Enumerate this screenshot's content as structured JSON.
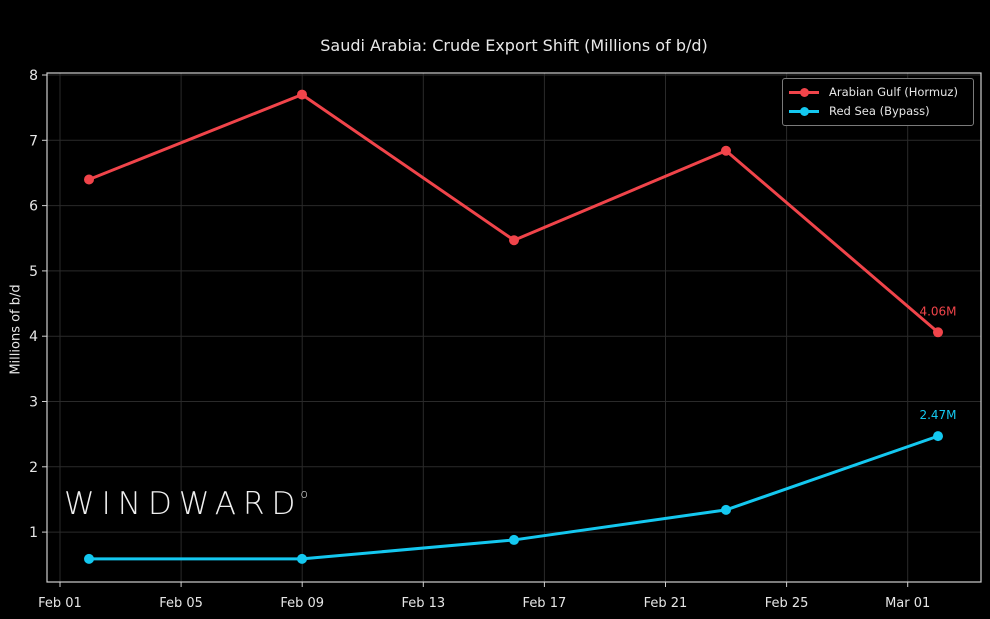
{
  "chart_data": {
    "type": "line",
    "title": "Saudi Arabia: Crude Export Shift (Millions of b/d)",
    "xlabel": "",
    "ylabel": "Millions of b/d",
    "x": [
      "Feb 02",
      "Feb 09",
      "Feb 16",
      "Feb 23",
      "Mar 02"
    ],
    "x_ticks": [
      "Feb 01",
      "Feb 05",
      "Feb 09",
      "Feb 13",
      "Feb 17",
      "Feb 21",
      "Feb 25",
      "Mar 01"
    ],
    "y_ticks": [
      1,
      2,
      3,
      4,
      5,
      6,
      7,
      8
    ],
    "ylim": [
      0.3,
      8.05
    ],
    "grid": true,
    "legend_position": "upper right",
    "series": [
      {
        "name": "Arabian Gulf (Hormuz)",
        "color": "#f0444a",
        "values": [
          6.4,
          7.7,
          5.47,
          6.84,
          4.06
        ],
        "end_label": "4.06M"
      },
      {
        "name": "Red Sea (Bypass)",
        "color": "#14c8f0",
        "values": [
          0.59,
          0.59,
          0.88,
          1.34,
          2.47
        ],
        "end_label": "2.47M"
      }
    ],
    "annotations": [
      "4.06M",
      "2.47M"
    ]
  },
  "watermark": {
    "text": "WINDWARD",
    "mark": "o"
  },
  "legend": {
    "items": [
      {
        "label": "Arabian Gulf (Hormuz)",
        "color": "#f0444a"
      },
      {
        "label": "Red Sea (Bypass)",
        "color": "#14c8f0"
      }
    ]
  }
}
